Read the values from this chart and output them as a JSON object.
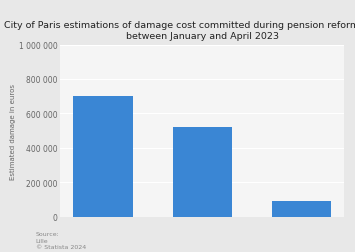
{
  "title_line1": "City of Paris estimations of damage cost committed during pension reform protests",
  "title_line2": "between January and April 2023",
  "categories": [
    "",
    "",
    ""
  ],
  "values": [
    700000,
    520000,
    90000
  ],
  "bar_color": "#3a86d4",
  "ylim": [
    0,
    1000000
  ],
  "yticks": [
    0,
    200000,
    400000,
    600000,
    800000,
    1000000
  ],
  "ytick_labels": [
    "0",
    "200 000",
    "400 000",
    "600 000",
    "800 000",
    "1 000 000"
  ],
  "ylabel": "Estimated damage in euros",
  "fig_bg_color": "#e8e8e8",
  "plot_bg_color": "#f5f5f5",
  "grid_color": "#ffffff",
  "source_text": "Source:\nLille\n© Statista 2024",
  "title_fontsize": 6.8,
  "ylabel_fontsize": 5.0,
  "tick_fontsize": 5.5,
  "source_fontsize": 4.5
}
